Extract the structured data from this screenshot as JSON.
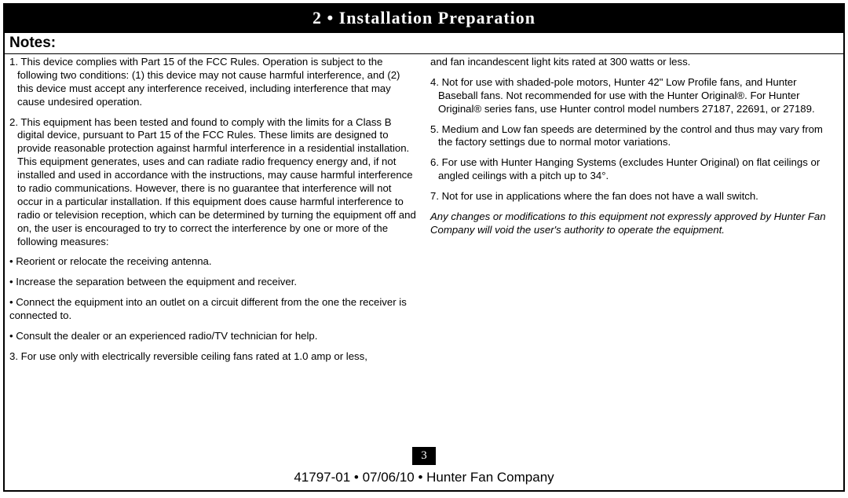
{
  "header": "2 • Installation Preparation",
  "notes_heading": "Notes:",
  "left": {
    "n1": "1. This device complies with Part 15 of the FCC Rules. Operation is subject to the following two conditions: (1) this device may not cause harmful interference, and (2) this device must accept any interference received, including interference that may cause undesired operation.",
    "n2": "2. This equipment has been tested and found to comply with the limits for a Class B digital device, pursuant to Part 15 of the FCC Rules. These limits are designed to provide reasonable protection against harmful interference in a residential installation. This equipment generates, uses and can radiate radio frequency energy and, if not installed and used in accordance with the instructions, may cause harmful interference to radio communications. However, there is no guarantee that interference will not occur in a particular installation. If this equipment does cause harmful interference to radio or television reception, which can be determined by turning the equipment off and on, the user is encouraged to try to correct the interference by one or more of the following measures:",
    "b1": "• Reorient or relocate the receiving antenna.",
    "b2": "• Increase the separation between the equipment and receiver.",
    "b3": "• Connect the equipment into an outlet on a circuit different from the one the receiver is connected to.",
    "b4": "• Consult the dealer or an experienced radio/TV technician for help.",
    "n3": "3. For use only with electrically reversible ceiling fans rated at 1.0 amp or less,"
  },
  "right": {
    "n3b": "and fan incandescent light kits rated at 300 watts or less.",
    "n4": "4. Not for use with shaded-pole motors, Hunter 42\" Low Profile fans, and Hunter Baseball fans. Not recommended for use with the Hunter Original®. For Hunter Original® series fans, use Hunter control model numbers 27187, 22691, or 27189.",
    "n5": "5. Medium and Low fan speeds are determined by the control and thus may vary from the factory settings due to normal motor variations.",
    "n6": "6. For use with Hunter Hanging Systems (excludes Hunter Original) on flat ceilings or angled ceilings with a pitch up to 34°.",
    "n7": "7. Not for use in applications where the fan does not have a wall switch.",
    "disclaimer": "Any changes or modifications to this equipment not expressly approved by Hunter Fan Company will void the user's authority to operate the equipment."
  },
  "page_number": "3",
  "footer": "41797-01 • 07/06/10 • Hunter Fan Company"
}
